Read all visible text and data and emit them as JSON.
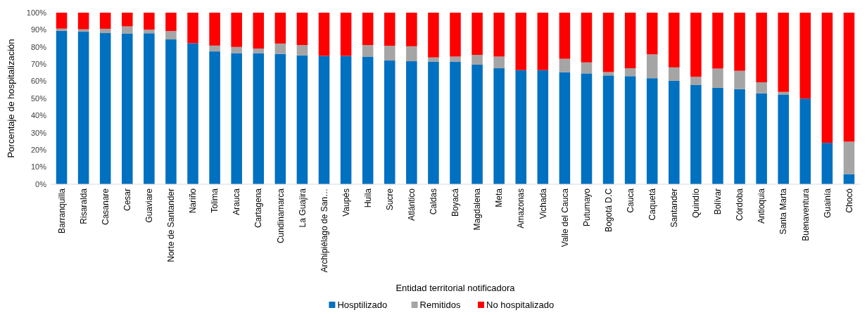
{
  "chart_data": {
    "type": "bar",
    "stacked": true,
    "xlabel": "Entidad territorial notificadora",
    "ylabel": "Porcentaje de hospitalización",
    "categories": [
      "Barranquilla",
      "Risaralda",
      "Casanare",
      "Cesar",
      "Guaviare",
      "Norte de Santander",
      "Nariño",
      "Tolima",
      "Arauca",
      "Cartagena",
      "Cundinamarca",
      "La Guajira",
      "Archipiélago de San…",
      "Vaupés",
      "Huila",
      "Sucre",
      "Atlántico",
      "Caldas",
      "Boyacá",
      "Magdalena",
      "Meta",
      "Amazonas",
      "Vichada",
      "Valle del Cauca",
      "Putumayo",
      "Bogotá D.C",
      "Cauca",
      "Caquetá",
      "Santander",
      "Quindío",
      "Bolívar",
      "Córdoba",
      "Antioquia",
      "Santa Marta",
      "Buenaventura",
      "Guainía",
      "Chocó"
    ],
    "series": [
      {
        "name": "Hosptilizado",
        "color": "#0070c0",
        "values": [
          89.4,
          88.9,
          88.1,
          87.9,
          88.0,
          84.4,
          82.2,
          77.4,
          76.4,
          76.4,
          76.0,
          75.1,
          74.8,
          74.8,
          74.4,
          72.1,
          71.7,
          71.5,
          71.5,
          69.7,
          67.6,
          66.5,
          66.5,
          65.3,
          64.6,
          63.4,
          63.0,
          61.8,
          60.3,
          57.8,
          56.2,
          55.4,
          53.0,
          52.3,
          49.9,
          24.1,
          5.9
        ]
      },
      {
        "name": "Remitidos",
        "color": "#a5a5a5",
        "values": [
          1.3,
          1.4,
          2.5,
          4.1,
          2.1,
          4.9,
          0,
          3.4,
          3.6,
          2.7,
          6.0,
          6.0,
          0,
          0,
          6.7,
          8.6,
          8.7,
          2.4,
          2.9,
          5.7,
          6.8,
          0,
          0,
          7.8,
          6.4,
          2.0,
          4.6,
          13.9,
          7.8,
          4.8,
          11.2,
          10.7,
          6.4,
          1.5,
          0,
          0,
          18.9
        ]
      },
      {
        "name": "No hospitalizado",
        "color": "#ff0000",
        "values": [
          9.3,
          9.7,
          9.4,
          8.0,
          9.9,
          10.7,
          17.8,
          19.2,
          20.0,
          20.9,
          18.0,
          18.9,
          25.2,
          25.2,
          18.9,
          19.3,
          19.6,
          26.1,
          25.6,
          24.6,
          25.6,
          33.5,
          33.5,
          26.9,
          29.0,
          34.6,
          32.4,
          24.3,
          31.9,
          37.4,
          32.6,
          33.9,
          40.6,
          46.2,
          50.1,
          75.9,
          75.2
        ]
      }
    ],
    "ylim": [
      0,
      100
    ],
    "yticks": [
      {
        "value": 0,
        "label": "0%"
      },
      {
        "value": 10,
        "label": "10%"
      },
      {
        "value": 20,
        "label": "20%"
      },
      {
        "value": 30,
        "label": "30%"
      },
      {
        "value": 40,
        "label": "40%"
      },
      {
        "value": 50,
        "label": "50%"
      },
      {
        "value": 60,
        "label": "60%"
      },
      {
        "value": 70,
        "label": "70%"
      },
      {
        "value": 80,
        "label": "80%"
      },
      {
        "value": 90,
        "label": "90%"
      },
      {
        "value": 100,
        "label": "100%"
      }
    ],
    "legend": "bottom"
  }
}
